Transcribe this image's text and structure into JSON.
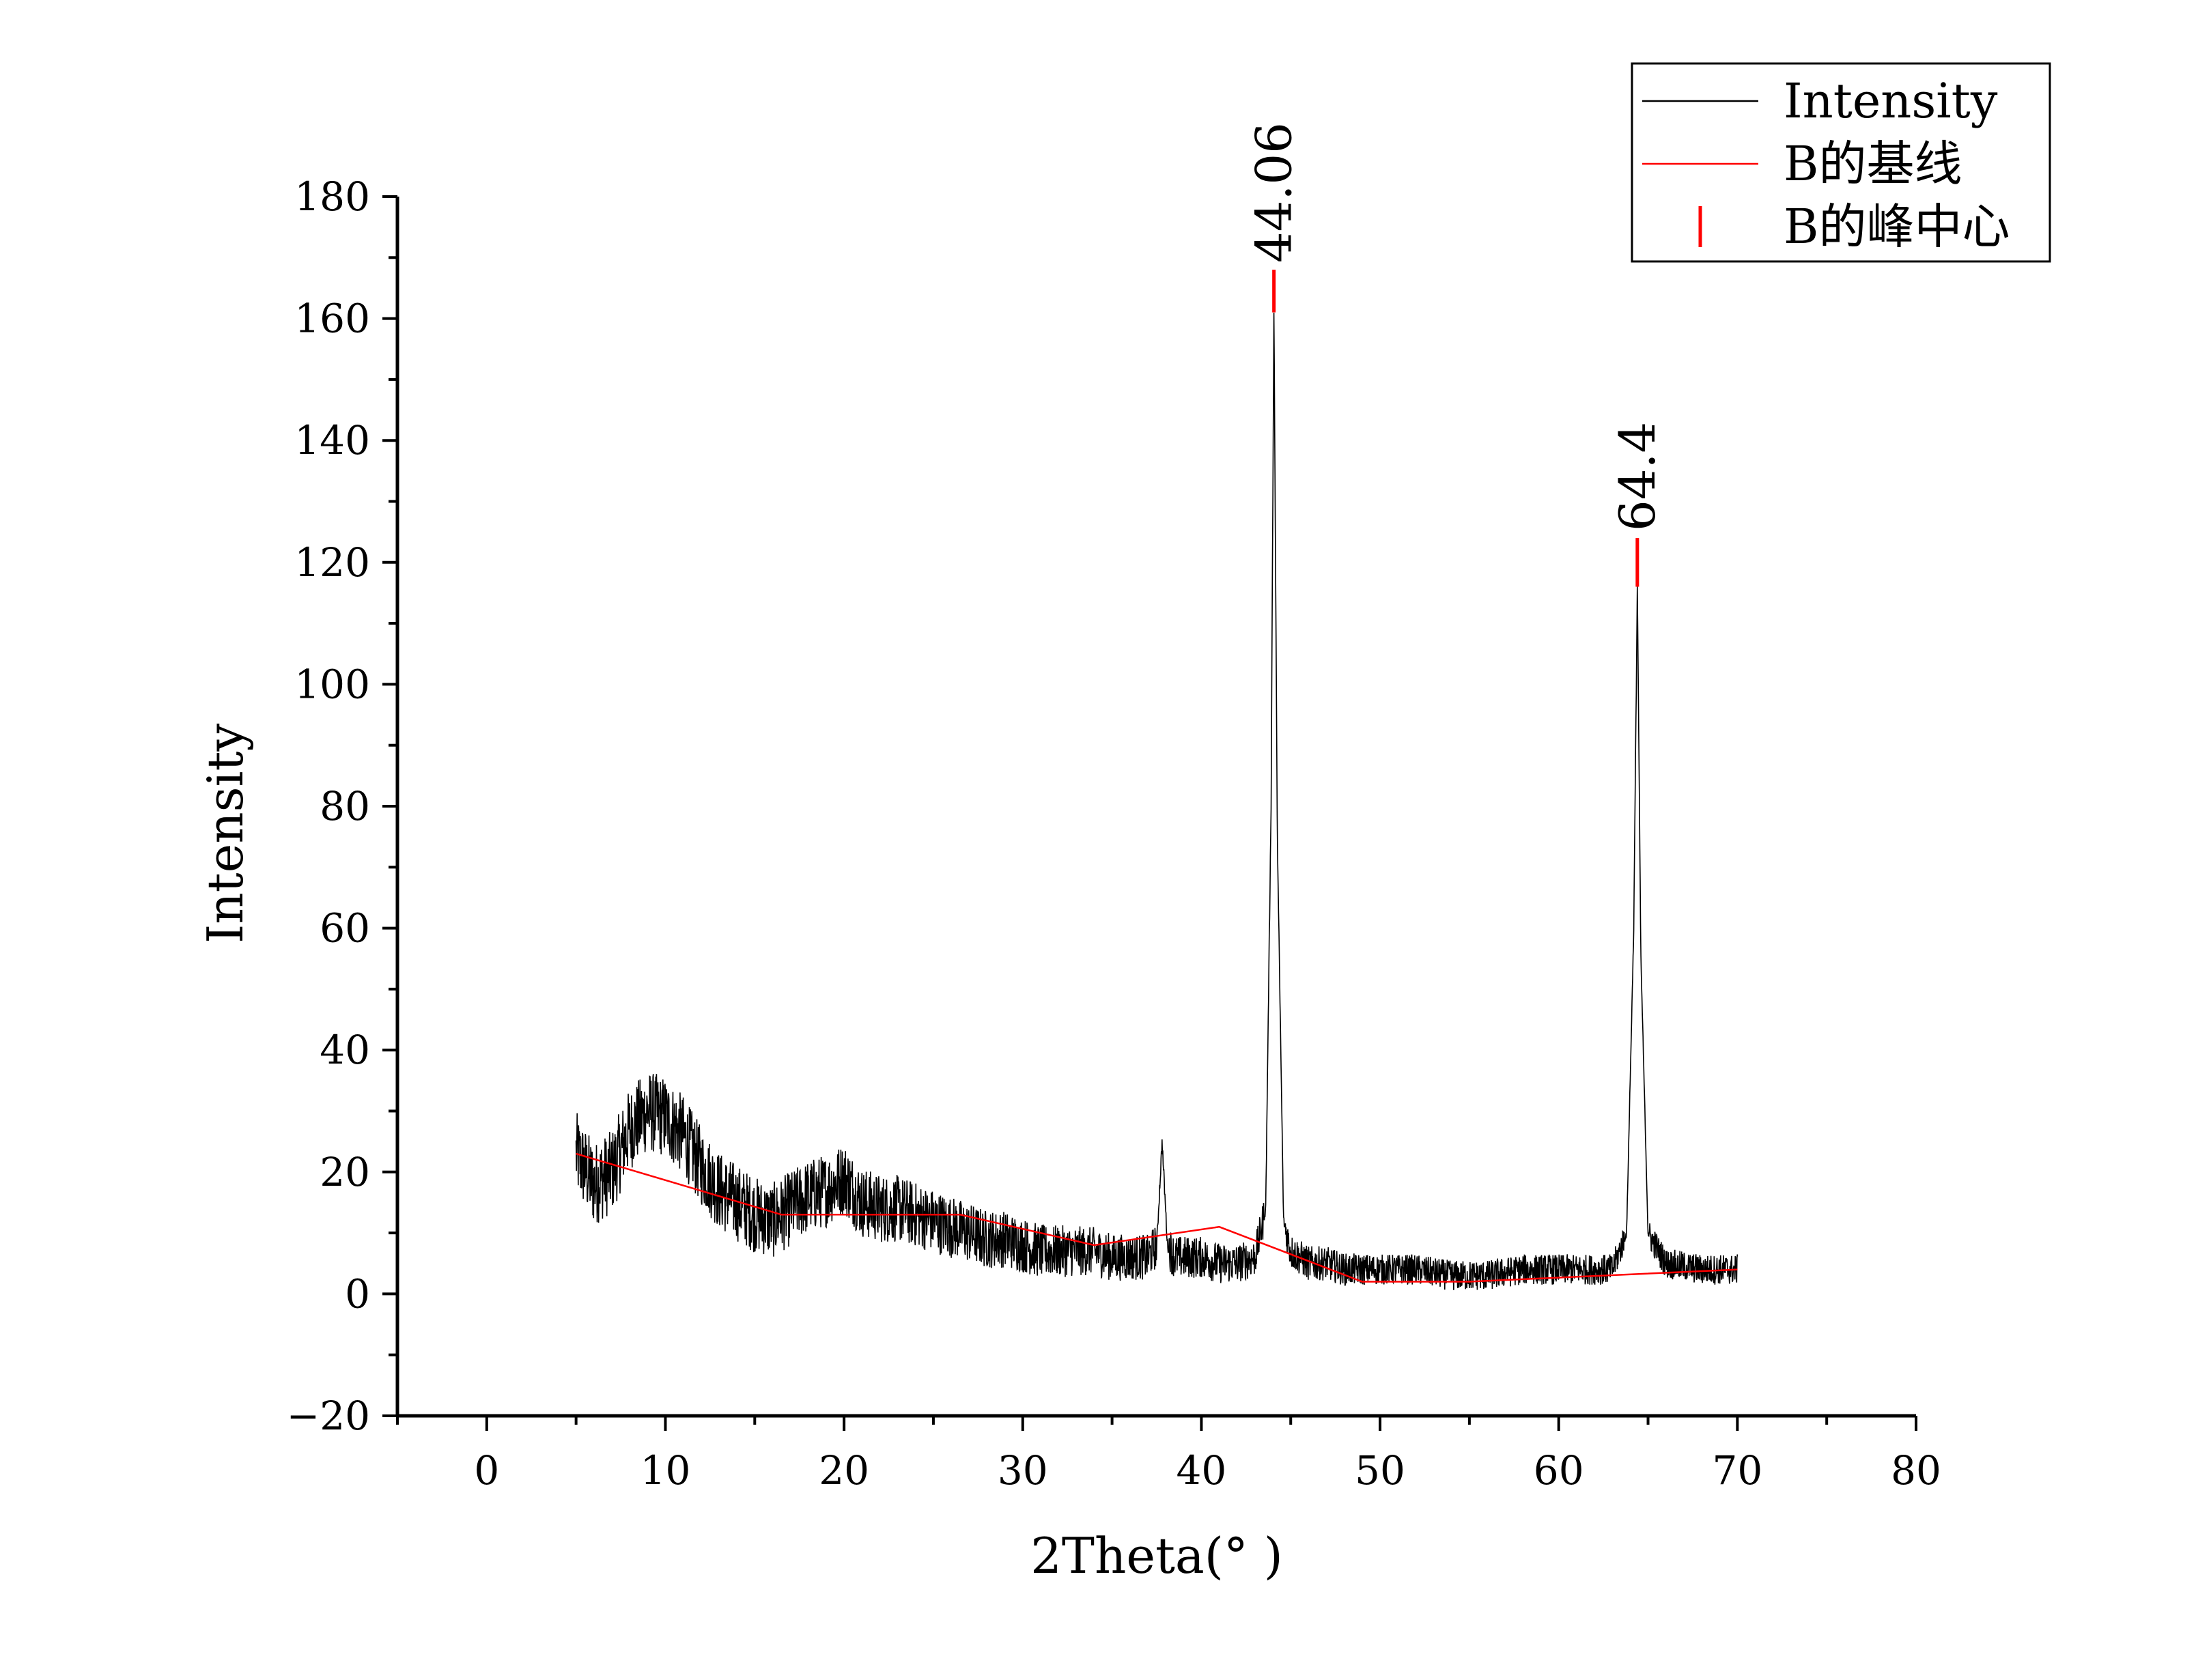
{
  "chart_data": {
    "type": "line",
    "xlabel": "2Theta(° )",
    "ylabel": "Intensity",
    "xlim": [
      -5,
      80
    ],
    "ylim": [
      -20,
      180
    ],
    "x_ticks": [
      "0",
      "10",
      "20",
      "30",
      "40",
      "50",
      "60",
      "70",
      "80"
    ],
    "y_ticks": [
      "−20",
      "0",
      "20",
      "40",
      "60",
      "80",
      "100",
      "120",
      "140",
      "160",
      "180"
    ],
    "grid": false,
    "legend_position": "top-right",
    "series": [
      {
        "name": "Intensity",
        "color": "#000000",
        "x_range": [
          5,
          70
        ],
        "points": [
          [
            5,
            23
          ],
          [
            6,
            18
          ],
          [
            7,
            20
          ],
          [
            8,
            27
          ],
          [
            9,
            30
          ],
          [
            10,
            29
          ],
          [
            11,
            26
          ],
          [
            12,
            21
          ],
          [
            13,
            17
          ],
          [
            14,
            15
          ],
          [
            15,
            13
          ],
          [
            16,
            12
          ],
          [
            17,
            14
          ],
          [
            18,
            16
          ],
          [
            19,
            17
          ],
          [
            20,
            19
          ],
          [
            21,
            15
          ],
          [
            22,
            14
          ],
          [
            23,
            14
          ],
          [
            24,
            13
          ],
          [
            25,
            12
          ],
          [
            26,
            11
          ],
          [
            27,
            10
          ],
          [
            28,
            9
          ],
          [
            29,
            9
          ],
          [
            30,
            8
          ],
          [
            31,
            7
          ],
          [
            32,
            7
          ],
          [
            33,
            7
          ],
          [
            34,
            7
          ],
          [
            35,
            6
          ],
          [
            36,
            6
          ],
          [
            37,
            6
          ],
          [
            37.5,
            8
          ],
          [
            37.8,
            25
          ],
          [
            38.1,
            8
          ],
          [
            38.5,
            6
          ],
          [
            39,
            6
          ],
          [
            40,
            6
          ],
          [
            41,
            5
          ],
          [
            42,
            5
          ],
          [
            43,
            6
          ],
          [
            43.6,
            14
          ],
          [
            43.9,
            80
          ],
          [
            44.06,
            161
          ],
          [
            44.25,
            75
          ],
          [
            44.6,
            12
          ],
          [
            45,
            7
          ],
          [
            46,
            5
          ],
          [
            47,
            5
          ],
          [
            48,
            4
          ],
          [
            50,
            4
          ],
          [
            52,
            4
          ],
          [
            54,
            3
          ],
          [
            56,
            3
          ],
          [
            58,
            4
          ],
          [
            60,
            4
          ],
          [
            62,
            4
          ],
          [
            63,
            4
          ],
          [
            63.8,
            10
          ],
          [
            64.2,
            60
          ],
          [
            64.4,
            116
          ],
          [
            64.6,
            55
          ],
          [
            65,
            10
          ],
          [
            66,
            5
          ],
          [
            68,
            4
          ],
          [
            70,
            4
          ]
        ],
        "noise_amplitude": [
          [
            5,
            7
          ],
          [
            20,
            6
          ],
          [
            34,
            4
          ],
          [
            50,
            2.5
          ],
          [
            70,
            2.5
          ]
        ]
      },
      {
        "name": "B的基线",
        "color": "#ff0000",
        "points": [
          [
            5,
            23
          ],
          [
            16.5,
            13
          ],
          [
            26.5,
            13
          ],
          [
            34,
            8
          ],
          [
            41,
            11
          ],
          [
            49,
            2
          ],
          [
            55,
            2
          ],
          [
            70,
            4
          ]
        ]
      },
      {
        "name": "B的峰中心",
        "color": "#ff0000",
        "type": "marker",
        "peaks": [
          {
            "x": 44.06,
            "label": "44.06",
            "marker_range": [
              161,
              168
            ]
          },
          {
            "x": 64.4,
            "label": "64.4",
            "marker_range": [
              116,
              124
            ]
          }
        ]
      }
    ]
  }
}
